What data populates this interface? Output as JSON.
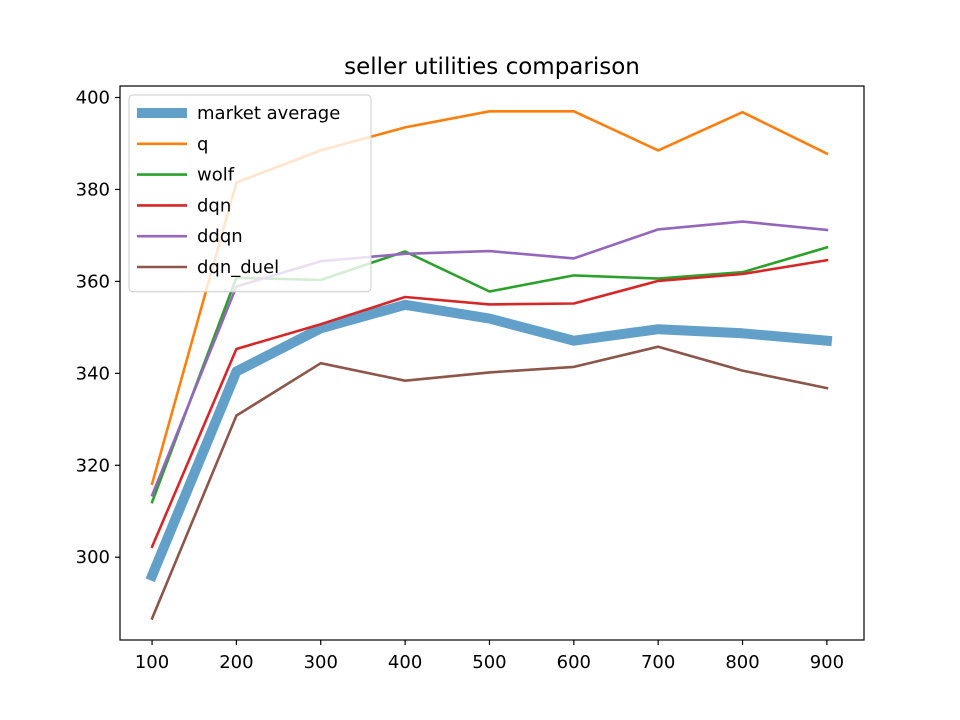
{
  "chart_data": {
    "type": "line",
    "title": "seller utilities comparison",
    "xlabel": "",
    "ylabel": "",
    "x": [
      100,
      200,
      300,
      400,
      500,
      600,
      700,
      800,
      900
    ],
    "xlim": [
      62,
      944
    ],
    "ylim": [
      282,
      402.5
    ],
    "xticks": [
      "100",
      "200",
      "300",
      "400",
      "500",
      "600",
      "700",
      "800",
      "900"
    ],
    "yticks": [
      "300",
      "320",
      "340",
      "360",
      "380",
      "400"
    ],
    "grid": false,
    "legend_position": "upper-left",
    "series": [
      {
        "name": "market average",
        "color": "#1f77b4",
        "values": [
          296,
          340.4,
          349.8,
          354.9,
          351.9,
          347.1,
          349.6,
          348.7,
          347.1
        ]
      },
      {
        "name": "q",
        "color": "#ff7f0e",
        "values": [
          316,
          381.5,
          388.5,
          393.5,
          397,
          397,
          388.5,
          396.8,
          387.8
        ]
      },
      {
        "name": "wolf",
        "color": "#2ca02c",
        "values": [
          312,
          360.8,
          360.3,
          366.5,
          357.8,
          361.3,
          360.6,
          362,
          367.4
        ]
      },
      {
        "name": "dqn",
        "color": "#d62728",
        "values": [
          302.3,
          345.3,
          350.7,
          356.6,
          355,
          355.2,
          360.1,
          361.6,
          364.6
        ]
      },
      {
        "name": "ddqn",
        "color": "#9467bd",
        "values": [
          313.5,
          358.9,
          364.4,
          366,
          366.6,
          365,
          371.3,
          373,
          371.2
        ]
      },
      {
        "name": "dqn_duel",
        "color": "#8c564b",
        "values": [
          286.7,
          330.8,
          342.2,
          338.4,
          340.2,
          341.4,
          345.8,
          340.6,
          336.8
        ]
      }
    ]
  }
}
